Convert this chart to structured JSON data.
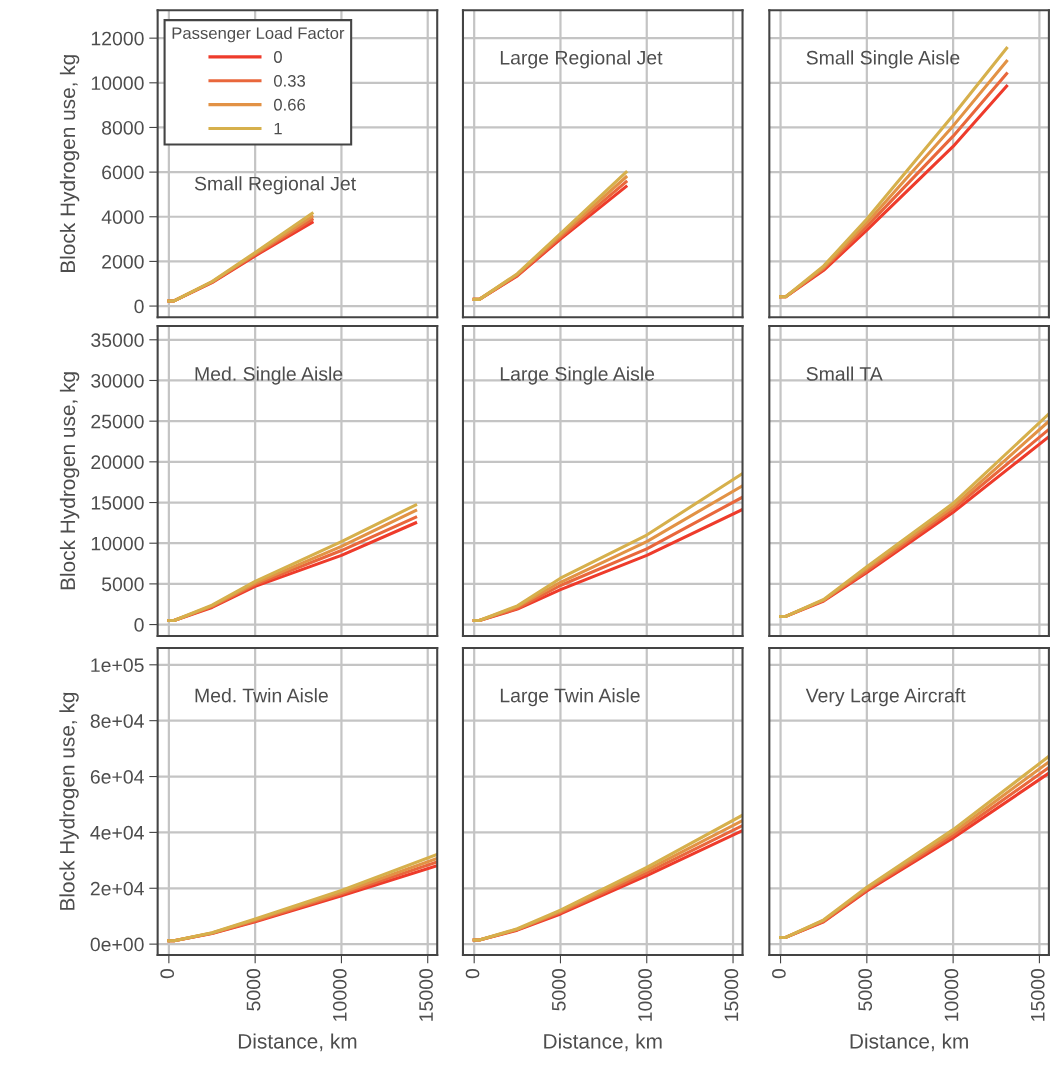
{
  "chart_data": [
    {
      "type": "line",
      "title": "Small Regional Jet",
      "ylabel": "Block Hydrogen use, kg",
      "legend_title": "Passenger Load Factor",
      "legend": "top left",
      "grid": true,
      "tick_labels": "y",
      "xlim": [
        -650,
        15550
      ],
      "xticks": [
        0,
        5000,
        10000,
        15000
      ],
      "ylim": [
        -500,
        13250
      ],
      "yticks": [
        0,
        2000,
        4000,
        6000,
        8000,
        10000,
        12000
      ],
      "x": [
        0,
        300,
        2500,
        5000,
        8300
      ],
      "series": [
        {
          "name": "0",
          "color": "#ee3b2b",
          "values": [
            230,
            230,
            1050,
            2250,
            3750
          ]
        },
        {
          "name": "0.33",
          "color": "#e9673c",
          "values": [
            230,
            230,
            1070,
            2300,
            3880
          ]
        },
        {
          "name": "0.66",
          "color": "#e29245",
          "values": [
            230,
            230,
            1080,
            2350,
            4010
          ]
        },
        {
          "name": "1",
          "color": "#d6b04c",
          "values": [
            230,
            230,
            1100,
            2400,
            4150
          ]
        }
      ]
    },
    {
      "type": "line",
      "title": "Large Regional Jet",
      "grid": true,
      "tick_labels": false,
      "xlim": [
        -650,
        15550
      ],
      "xticks": [
        0,
        5000,
        10000,
        15000
      ],
      "ylim": [
        -500,
        13250
      ],
      "yticks": [
        0,
        2000,
        4000,
        6000,
        8000,
        10000,
        12000
      ],
      "x": [
        0,
        300,
        2500,
        5000,
        8800
      ],
      "series": [
        {
          "color": "#ee3b2b",
          "values": [
            300,
            300,
            1350,
            3000,
            5350
          ]
        },
        {
          "color": "#e9673c",
          "values": [
            300,
            300,
            1380,
            3080,
            5560
          ]
        },
        {
          "color": "#e29245",
          "values": [
            300,
            300,
            1420,
            3170,
            5780
          ]
        },
        {
          "color": "#d6b04c",
          "values": [
            300,
            300,
            1450,
            3250,
            6000
          ]
        }
      ]
    },
    {
      "type": "line",
      "title": "Small Single Aisle",
      "grid": true,
      "tick_labels": false,
      "xlim": [
        -650,
        15550
      ],
      "xticks": [
        0,
        5000,
        10000,
        15000
      ],
      "ylim": [
        -500,
        13250
      ],
      "yticks": [
        0,
        2000,
        4000,
        6000,
        8000,
        10000,
        12000
      ],
      "x": [
        0,
        300,
        2500,
        5000,
        10000,
        13100
      ],
      "series": [
        {
          "color": "#ee3b2b",
          "values": [
            420,
            420,
            1600,
            3400,
            7150,
            9850
          ]
        },
        {
          "color": "#e9673c",
          "values": [
            420,
            420,
            1670,
            3570,
            7610,
            10410
          ]
        },
        {
          "color": "#e29245",
          "values": [
            420,
            420,
            1730,
            3730,
            8070,
            10970
          ]
        },
        {
          "color": "#d6b04c",
          "values": [
            420,
            420,
            1800,
            3900,
            8550,
            11550
          ]
        }
      ]
    },
    {
      "type": "line",
      "title": "Med. Single Aisle",
      "ylabel": "Block Hydrogen use, kg",
      "grid": true,
      "tick_labels": "y",
      "xlim": [
        -650,
        15550
      ],
      "xticks": [
        0,
        5000,
        10000,
        15000
      ],
      "ylim": [
        -1400,
        36700
      ],
      "yticks": [
        0,
        5000,
        10000,
        15000,
        20000,
        25000,
        30000,
        35000
      ],
      "x": [
        0,
        300,
        2500,
        5000,
        10000,
        14300
      ],
      "series": [
        {
          "color": "#ee3b2b",
          "values": [
            500,
            500,
            2100,
            4700,
            8500,
            12500
          ]
        },
        {
          "color": "#e9673c",
          "values": [
            500,
            500,
            2200,
            4900,
            9100,
            13200
          ]
        },
        {
          "color": "#e29245",
          "values": [
            500,
            500,
            2300,
            5100,
            9600,
            14000
          ]
        },
        {
          "color": "#d6b04c",
          "values": [
            500,
            500,
            2400,
            5300,
            10200,
            14700
          ]
        }
      ]
    },
    {
      "type": "line",
      "title": "Large Single Aisle",
      "grid": true,
      "tick_labels": false,
      "xlim": [
        -650,
        15550
      ],
      "xticks": [
        0,
        5000,
        10000,
        15000
      ],
      "ylim": [
        -1400,
        36700
      ],
      "yticks": [
        0,
        5000,
        10000,
        15000,
        20000,
        25000,
        30000,
        35000
      ],
      "x": [
        0,
        300,
        2500,
        5000,
        10000,
        15500
      ],
      "series": [
        {
          "color": "#ee3b2b",
          "values": [
            500,
            500,
            1900,
            4300,
            8500,
            14100
          ]
        },
        {
          "color": "#e9673c",
          "values": [
            500,
            500,
            2000,
            4800,
            9300,
            15600
          ]
        },
        {
          "color": "#e29245",
          "values": [
            500,
            500,
            2200,
            5200,
            10200,
            17000
          ]
        },
        {
          "color": "#d6b04c",
          "values": [
            500,
            500,
            2300,
            5700,
            11000,
            18500
          ]
        }
      ]
    },
    {
      "type": "line",
      "title": "Small TA",
      "grid": true,
      "tick_labels": false,
      "xlim": [
        -650,
        15550
      ],
      "xticks": [
        0,
        5000,
        10000,
        15000
      ],
      "ylim": [
        -1400,
        36700
      ],
      "yticks": [
        0,
        5000,
        10000,
        15000,
        20000,
        25000,
        30000,
        35000
      ],
      "x": [
        0,
        300,
        2500,
        5000,
        10000,
        15500
      ],
      "series": [
        {
          "color": "#ee3b2b",
          "values": [
            1000,
            1000,
            2900,
            6400,
            13800,
            23000
          ]
        },
        {
          "color": "#e9673c",
          "values": [
            1000,
            1000,
            3000,
            6600,
            14200,
            23900
          ]
        },
        {
          "color": "#e29245",
          "values": [
            1000,
            1000,
            3000,
            6900,
            14500,
            24900
          ]
        },
        {
          "color": "#d6b04c",
          "values": [
            1000,
            1000,
            3100,
            7100,
            14900,
            25800
          ]
        }
      ]
    },
    {
      "type": "line",
      "title": "Med. Twin Aisle",
      "ylabel": "Block Hydrogen use, kg",
      "xlabel": "Distance, km",
      "grid": true,
      "xlim": [
        -650,
        15550
      ],
      "xticks": [
        0,
        5000,
        10000,
        15000
      ],
      "ylim": [
        -3900,
        106000
      ],
      "yticks": [
        {
          "value": 0,
          "label": "0e+00"
        },
        {
          "value": 20000,
          "label": "2e+04"
        },
        {
          "value": 40000,
          "label": "4e+04"
        },
        {
          "value": 60000,
          "label": "6e+04"
        },
        {
          "value": 80000,
          "label": "8e+04"
        },
        {
          "value": 100000,
          "label": "1e+05"
        }
      ],
      "x": [
        0,
        300,
        2500,
        5000,
        10000,
        15500
      ],
      "series": [
        {
          "color": "#ee3b2b",
          "values": [
            1200,
            1200,
            3800,
            8000,
            17300,
            28000
          ]
        },
        {
          "color": "#e9673c",
          "values": [
            1200,
            1200,
            3900,
            8300,
            17900,
            29300
          ]
        },
        {
          "color": "#e29245",
          "values": [
            1200,
            1200,
            4000,
            8700,
            18500,
            30600
          ]
        },
        {
          "color": "#d6b04c",
          "values": [
            1200,
            1200,
            4100,
            9000,
            19200,
            32000
          ]
        }
      ]
    },
    {
      "type": "line",
      "title": "Large Twin Aisle",
      "xlabel": "Distance, km",
      "grid": true,
      "tick_labels": "x",
      "xlim": [
        -650,
        15550
      ],
      "xticks": [
        0,
        5000,
        10000,
        15000
      ],
      "ylim": [
        -3900,
        106000
      ],
      "yticks": [
        0,
        20000,
        40000,
        60000,
        80000,
        100000
      ],
      "x": [
        0,
        300,
        2500,
        5000,
        10000,
        15500
      ],
      "series": [
        {
          "color": "#ee3b2b",
          "values": [
            1500,
            1500,
            5000,
            10800,
            24500,
            40500
          ]
        },
        {
          "color": "#e9673c",
          "values": [
            1500,
            1500,
            5200,
            11300,
            25500,
            42300
          ]
        },
        {
          "color": "#e29245",
          "values": [
            1500,
            1500,
            5300,
            11700,
            26500,
            44100
          ]
        },
        {
          "color": "#d6b04c",
          "values": [
            1500,
            1500,
            5500,
            12200,
            27500,
            46000
          ]
        }
      ]
    },
    {
      "type": "line",
      "title": "Very Large Aircraft",
      "xlabel": "Distance, km",
      "grid": true,
      "tick_labels": "x",
      "xlim": [
        -650,
        15550
      ],
      "xticks": [
        0,
        5000,
        10000,
        15000
      ],
      "ylim": [
        -3900,
        106000
      ],
      "yticks": [
        0,
        20000,
        40000,
        60000,
        80000,
        100000
      ],
      "x": [
        0,
        300,
        2500,
        5000,
        10000,
        15500
      ],
      "series": [
        {
          "color": "#ee3b2b",
          "values": [
            2400,
            2400,
            8000,
            19000,
            38000,
            61000
          ]
        },
        {
          "color": "#e9673c",
          "values": [
            2400,
            2400,
            8200,
            19500,
            39000,
            63000
          ]
        },
        {
          "color": "#e29245",
          "values": [
            2400,
            2400,
            8500,
            19900,
            40000,
            65000
          ]
        },
        {
          "color": "#d6b04c",
          "values": [
            2400,
            2400,
            8700,
            20400,
            41000,
            67000
          ]
        }
      ]
    }
  ]
}
